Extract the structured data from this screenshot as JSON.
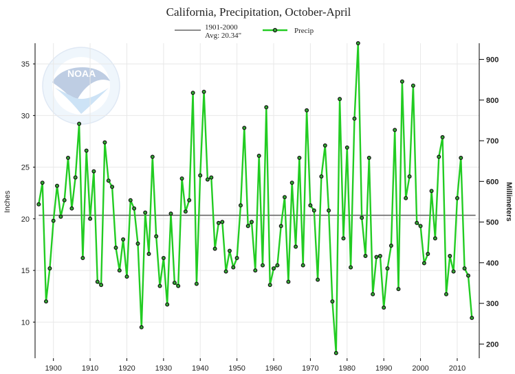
{
  "chart_data": {
    "type": "line",
    "title": "California, Precipitation, October-April",
    "ylabel": "Inches",
    "y2label": "Millimeters",
    "xlim": [
      1895,
      2016
    ],
    "ylim": [
      6.5,
      37
    ],
    "y2lim": [
      165.1,
      939.8
    ],
    "x_ticks": [
      1900,
      1910,
      1920,
      1930,
      1940,
      1950,
      1960,
      1970,
      1980,
      1990,
      2000,
      2010
    ],
    "y_ticks": [
      10,
      15,
      20,
      25,
      30,
      35
    ],
    "y2_ticks": [
      200,
      300,
      400,
      500,
      600,
      700,
      800,
      900
    ],
    "grid": true,
    "legend_position": "top-center",
    "legend": {
      "average_label_line1": "1901-2000",
      "average_label_line2": "Avg: 20.34\"",
      "series_label": "Precip"
    },
    "average": 20.34,
    "series": [
      {
        "name": "Precip",
        "color": "#22cc22",
        "x": [
          1896,
          1897,
          1898,
          1899,
          1900,
          1901,
          1902,
          1903,
          1904,
          1905,
          1906,
          1907,
          1908,
          1909,
          1910,
          1911,
          1912,
          1913,
          1914,
          1915,
          1916,
          1917,
          1918,
          1919,
          1920,
          1921,
          1922,
          1923,
          1924,
          1925,
          1926,
          1927,
          1928,
          1929,
          1930,
          1931,
          1932,
          1933,
          1934,
          1935,
          1936,
          1937,
          1938,
          1939,
          1940,
          1941,
          1942,
          1943,
          1944,
          1945,
          1946,
          1947,
          1948,
          1949,
          1950,
          1951,
          1952,
          1953,
          1954,
          1955,
          1956,
          1957,
          1958,
          1959,
          1960,
          1961,
          1962,
          1963,
          1964,
          1965,
          1966,
          1967,
          1968,
          1969,
          1970,
          1971,
          1972,
          1973,
          1974,
          1975,
          1976,
          1977,
          1978,
          1979,
          1980,
          1981,
          1982,
          1983,
          1984,
          1985,
          1986,
          1987,
          1988,
          1989,
          1990,
          1991,
          1992,
          1993,
          1994,
          1995,
          1996,
          1997,
          1998,
          1999,
          2000,
          2001,
          2002,
          2003,
          2004,
          2005,
          2006,
          2007,
          2008,
          2009,
          2010,
          2011,
          2012,
          2013,
          2014
        ],
        "values": [
          21.4,
          23.5,
          12.0,
          15.2,
          19.8,
          23.2,
          20.2,
          21.8,
          25.9,
          21.0,
          24.0,
          29.2,
          16.2,
          26.6,
          20.0,
          24.6,
          13.9,
          13.6,
          27.4,
          23.7,
          23.1,
          17.2,
          15.0,
          18.0,
          14.4,
          21.8,
          21.0,
          17.6,
          9.5,
          20.6,
          16.6,
          26.0,
          18.3,
          13.5,
          16.2,
          11.7,
          20.5,
          13.8,
          13.5,
          23.9,
          20.7,
          21.8,
          32.2,
          13.7,
          24.2,
          32.3,
          23.8,
          24.0,
          17.1,
          19.6,
          19.7,
          14.9,
          16.9,
          15.3,
          16.2,
          21.3,
          28.8,
          19.3,
          19.7,
          15.0,
          26.1,
          15.5,
          30.8,
          13.6,
          15.2,
          15.5,
          19.3,
          22.1,
          13.9,
          23.5,
          17.3,
          25.9,
          15.5,
          30.5,
          21.3,
          20.8,
          14.1,
          24.1,
          27.1,
          20.8,
          12.0,
          7.0,
          31.6,
          18.1,
          26.9,
          15.3,
          29.7,
          37.0,
          20.1,
          16.4,
          25.9,
          12.7,
          16.3,
          16.4,
          11.4,
          15.2,
          17.4,
          28.6,
          13.2,
          33.3,
          22.0,
          24.1,
          32.9,
          19.6,
          19.3,
          15.7,
          16.6,
          22.7,
          18.1,
          26.0,
          27.9,
          12.7,
          16.4,
          14.9,
          22.0,
          25.9,
          15.2,
          14.5,
          10.4
        ]
      }
    ]
  }
}
